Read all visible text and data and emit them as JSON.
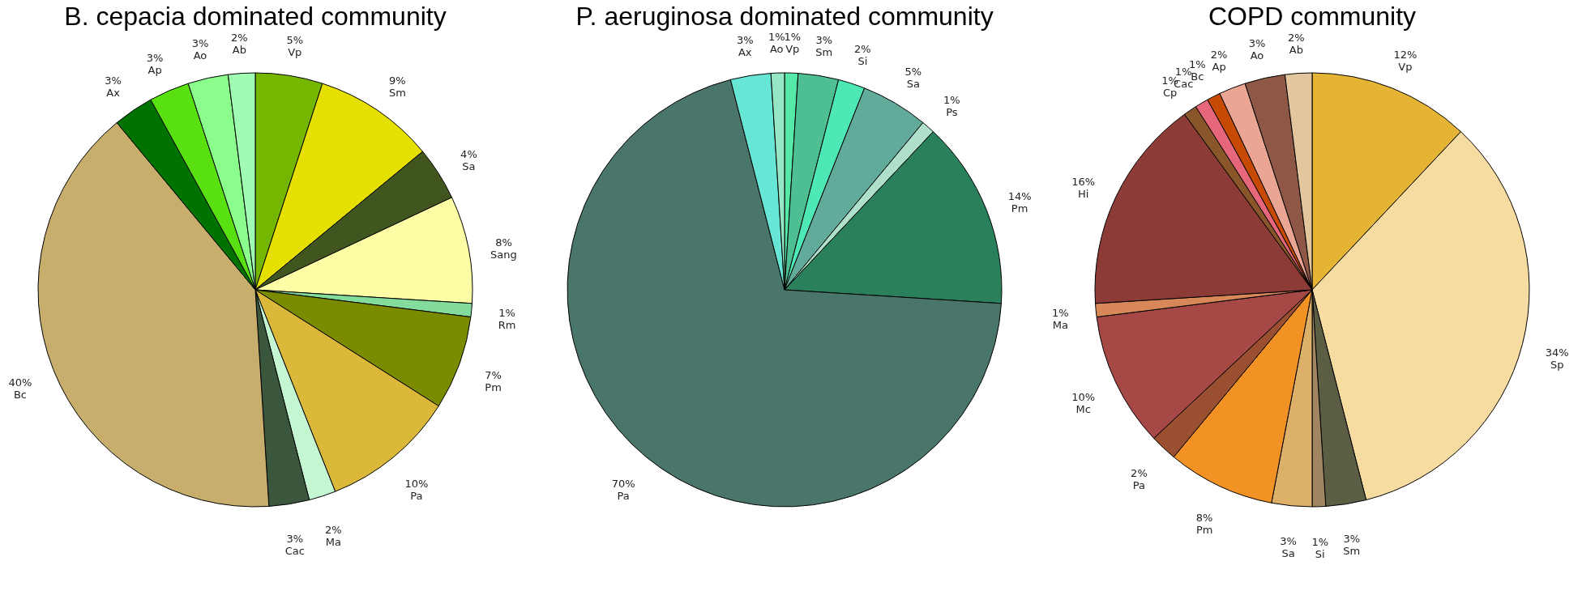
{
  "chart_data": [
    {
      "type": "pie",
      "title": "B. cepacia dominated community",
      "categories": [
        "Vp",
        "Sm",
        "Sa",
        "Sang",
        "Rm",
        "Pm",
        "Pa",
        "Ma",
        "Cac",
        "Bc",
        "Ax",
        "Ap",
        "Ao",
        "Ab"
      ],
      "values": [
        5,
        9,
        4,
        8,
        1,
        7,
        10,
        2,
        3,
        40,
        3,
        3,
        3,
        2
      ],
      "value_labels": [
        "5%",
        "9%",
        "4%",
        "8%",
        "1%",
        "7%",
        "10%",
        "2%",
        "3%",
        "40%",
        "3%",
        "3%",
        "3%",
        "2%"
      ],
      "colors": [
        "#74b600",
        "#e5e000",
        "#41561f",
        "#fdfda6",
        "#84dc9c",
        "#7a8b00",
        "#dbb83a",
        "#c5f6d2",
        "#3a573e",
        "#c8ae6c",
        "#007200",
        "#58e010",
        "#8afd8c",
        "#a0fcb2"
      ]
    },
    {
      "type": "pie",
      "title": "P. aeruginosa dominated community",
      "categories": [
        "Vp",
        "Sm",
        "Si",
        "Sa",
        "Ps",
        "Pm",
        "Pa",
        "Ax",
        "Ao"
      ],
      "values": [
        1,
        3,
        2,
        5,
        1,
        14,
        70,
        3,
        1
      ],
      "value_labels": [
        "1%",
        "3%",
        "2%",
        "5%",
        "1%",
        "14%",
        "70%",
        "3%",
        "1%"
      ],
      "colors": [
        "#55e8a6",
        "#4ebf92",
        "#4de8b6",
        "#62aa9a",
        "#aee0cc",
        "#2a805a",
        "#4a756b",
        "#67e6d6",
        "#94e6c4"
      ]
    },
    {
      "type": "pie",
      "title": "COPD community",
      "categories": [
        "Vp",
        "Sp",
        "Sm",
        "Si",
        "Sa",
        "Pm",
        "Pa",
        "Mc",
        "Ma",
        "Hi",
        "Cp",
        "Cac",
        "Bc",
        "Ap",
        "Ao",
        "Ab"
      ],
      "values": [
        12,
        34,
        3,
        1,
        3,
        8,
        2,
        10,
        1,
        16,
        1,
        1,
        1,
        2,
        3,
        2
      ],
      "value_labels": [
        "12%",
        "34%",
        "3%",
        "1%",
        "3%",
        "8%",
        "2%",
        "10%",
        "1%",
        "16%",
        "1%",
        "1%",
        "1%",
        "2%",
        "3%",
        "2%"
      ],
      "colors": [
        "#e5b435",
        "#f7dca2",
        "#5c5e44",
        "#a08660",
        "#ddb06a",
        "#f29224",
        "#9a5030",
        "#a64946",
        "#d78758",
        "#8d3b36",
        "#885628",
        "#e6677a",
        "#c64904",
        "#eaa693",
        "#8f5846",
        "#e3c59e"
      ]
    }
  ]
}
